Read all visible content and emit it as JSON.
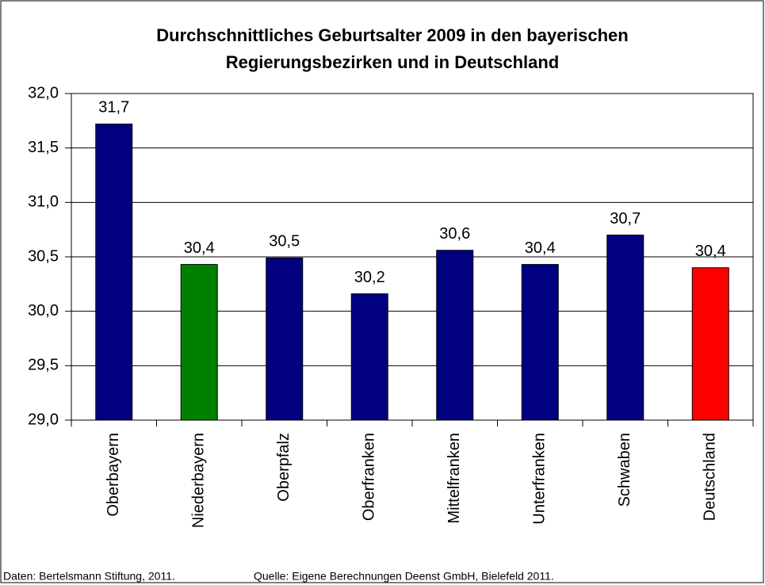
{
  "chart_data": {
    "type": "bar",
    "title_lines": [
      "Durchschnittliches Geburtsalter 2009 in den bayerischen",
      "Regierungsbezirken und in Deutschland"
    ],
    "categories": [
      "Oberbayern",
      "Niederbayern",
      "Oberpfalz",
      "Oberfranken",
      "Mittelfranken",
      "Unterfranken",
      "Schwaben",
      "Deutschland"
    ],
    "values": [
      31.72,
      30.43,
      30.49,
      30.16,
      30.56,
      30.43,
      30.7,
      30.4
    ],
    "value_labels": [
      "31,7",
      "30,4",
      "30,5",
      "30,2",
      "30,6",
      "30,4",
      "30,7",
      "30,4"
    ],
    "colors": [
      "#000080",
      "#008000",
      "#000080",
      "#000080",
      "#000080",
      "#000080",
      "#000080",
      "#ff0000"
    ],
    "ylim": [
      29,
      32
    ],
    "yticks": [
      {
        "value": 29,
        "label": "29,0"
      },
      {
        "value": 29.5,
        "label": "29,5"
      },
      {
        "value": 30,
        "label": "30,0"
      },
      {
        "value": 30.5,
        "label": "30,5"
      },
      {
        "value": 31,
        "label": "31,0"
      },
      {
        "value": 31.5,
        "label": "31,5"
      },
      {
        "value": 32,
        "label": "32,0"
      }
    ],
    "grid": true,
    "notes": [
      "Daten: Bertelsmann Stiftung, 2011.",
      "Quelle: Eigene Berechnungen Deenst GmbH, Bielefeld 2011."
    ]
  }
}
